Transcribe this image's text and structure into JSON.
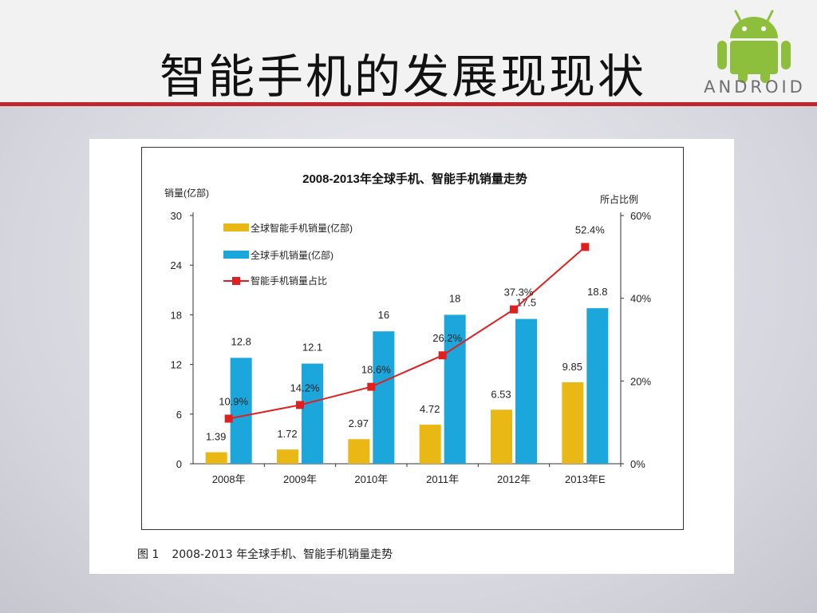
{
  "slide": {
    "title": "智能手机的发展现现状",
    "logo_text": "ANDROID",
    "accent_color": "#c0262c"
  },
  "figure": {
    "caption_label": "图 1",
    "caption_text": "2008-2013 年全球手机、智能手机销量走势"
  },
  "chart_data": {
    "type": "bar",
    "title": "2008-2013年全球手机、智能手机销量走势",
    "ylabel": "销量(亿部)",
    "y2label": "所占比例",
    "categories": [
      "2008年",
      "2009年",
      "2010年",
      "2011年",
      "2012年",
      "2013年E"
    ],
    "ylim": [
      0,
      30
    ],
    "yticks": [
      0,
      6,
      12,
      18,
      24,
      30
    ],
    "y2lim": [
      0,
      60
    ],
    "y2ticks": [
      "0%",
      "20%",
      "40%",
      "60%"
    ],
    "legend_position": "top-left",
    "grid": false,
    "series": [
      {
        "name": "全球智能手机销量(亿部)",
        "type": "bar",
        "axis": "left",
        "color": "#e9b815",
        "values": [
          1.39,
          1.72,
          2.97,
          4.72,
          6.53,
          9.85
        ],
        "labels": [
          "1.39",
          "1.72",
          "2.97",
          "4.72",
          "6.53",
          "9.85"
        ]
      },
      {
        "name": "全球手机销量(亿部)",
        "type": "bar",
        "axis": "left",
        "color": "#1ba6dc",
        "values": [
          12.8,
          12.1,
          16,
          18,
          17.5,
          18.8
        ],
        "labels": [
          "12.8",
          "12.1",
          "16",
          "18",
          "17.5",
          "18.8"
        ]
      },
      {
        "name": "智能手机销量占比",
        "type": "line",
        "axis": "right",
        "color": "#e02020",
        "values": [
          10.9,
          14.2,
          18.6,
          26.2,
          37.3,
          52.4
        ],
        "labels": [
          "10.9%",
          "14.2%",
          "18.6%",
          "26.2%",
          "37.3%",
          "52.4%"
        ]
      }
    ]
  }
}
